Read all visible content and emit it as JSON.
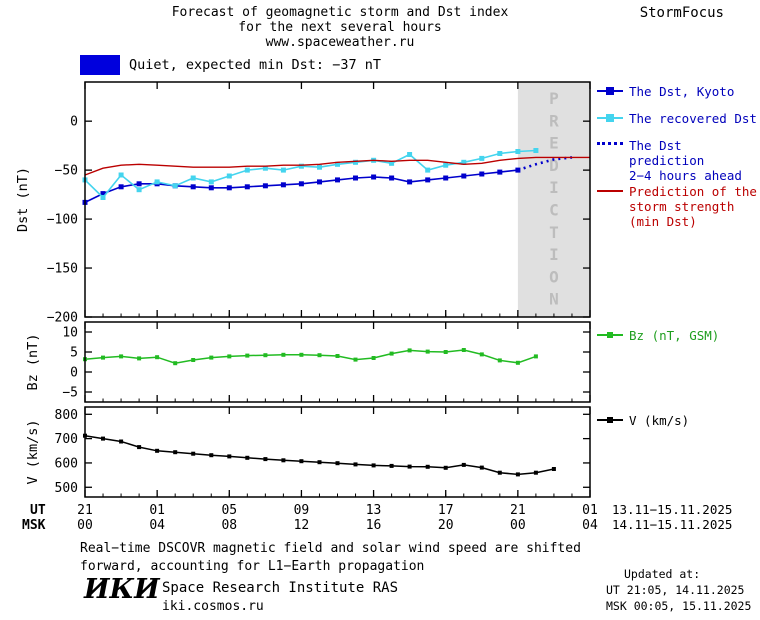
{
  "header": {
    "title_line1": "Forecast of geomagnetic storm and Dst index",
    "title_line2": "for the next several hours",
    "title_line3": "www.spaceweather.ru",
    "brand": "StormFocus"
  },
  "status": {
    "label": "Quiet, expected min Dst: −37 nT"
  },
  "colors": {
    "dst_blue": "#0000cc",
    "recovered_cyan": "#44d4ee",
    "prediction_red": "#bb0000",
    "bz_green": "#22bb22",
    "v_black": "#000000",
    "band_gray": "#e0e0e0",
    "status_swatch_blue": "#0000dd"
  },
  "legend": {
    "dst_kyoto": "The Dst, Kyoto",
    "recovered": "The recovered Dst",
    "prediction_l1": "The Dst prediction",
    "prediction_l2": "2−4 hours ahead",
    "storm_l1": "Prediction of the",
    "storm_l2": "storm strength",
    "storm_l3": "(min Dst)",
    "bz": "Bz (nT, GSM)",
    "v": "V (km/s)"
  },
  "axes": {
    "xlim": [
      0,
      28
    ],
    "x_ticks_hours": [
      0,
      4,
      8,
      12,
      16,
      20,
      24,
      28
    ],
    "ut_header": "UT",
    "msk_header": "MSK",
    "ut_tick_labels": [
      "21",
      "01",
      "05",
      "09",
      "13",
      "17",
      "21",
      "01"
    ],
    "msk_tick_labels": [
      "00",
      "04",
      "08",
      "12",
      "16",
      "20",
      "00",
      "04"
    ],
    "ut_date_range": "13.11−15.11.2025",
    "msk_date_range": "14.11−15.11.2025",
    "prediction_band_hours": [
      24,
      28
    ],
    "prediction_band_label": "PREDICTION"
  },
  "chart_data": [
    {
      "type": "line",
      "ylabel": "Dst (nT)",
      "ylim": [
        -200,
        40
      ],
      "yticks": [
        0,
        -50,
        -100,
        -150,
        -200
      ],
      "ytick_labels": [
        "0",
        "−50",
        "−100",
        "−150",
        "−200"
      ],
      "series": [
        {
          "id": "dst-kyoto",
          "name": "The Dst, Kyoto",
          "color": "#0000cc",
          "marker": 5,
          "width": 1.6,
          "x0": 0,
          "dx": 1,
          "y": [
            -83,
            -74,
            -67,
            -64,
            -64,
            -66,
            -67,
            -68,
            -68,
            -67,
            -66,
            -65,
            -64,
            -62,
            -60,
            -58,
            -57,
            -58,
            -62,
            -60,
            -58,
            -56,
            -54,
            -52,
            -50
          ]
        },
        {
          "id": "recovered-dst",
          "name": "The recovered Dst",
          "color": "#44d4ee",
          "marker": 5,
          "width": 1.6,
          "x0": 0,
          "dx": 1,
          "y": [
            -60,
            -78,
            -55,
            -70,
            -62,
            -66,
            -58,
            -62,
            -56,
            -50,
            -48,
            -50,
            -46,
            -47,
            -44,
            -42,
            -40,
            -43,
            -34,
            -50,
            -45,
            -42,
            -38,
            -33,
            -31,
            -30
          ]
        },
        {
          "id": "dst-prediction",
          "name": "The Dst prediction 2−4 hours ahead",
          "color": "#0000cc",
          "dash": "2 4",
          "width": 2.6,
          "x0": 24,
          "dx": 1,
          "y": [
            -50,
            -44,
            -39,
            -37
          ]
        },
        {
          "id": "storm-prediction",
          "name": "Prediction of the storm strength (min Dst)",
          "color": "#bb0000",
          "width": 1.4,
          "x0": 0,
          "dx": 1,
          "y": [
            -55,
            -48,
            -45,
            -44,
            -45,
            -46,
            -47,
            -47,
            -47,
            -46,
            -46,
            -45,
            -45,
            -44,
            -42,
            -41,
            -40,
            -41,
            -40,
            -40,
            -42,
            -44,
            -43,
            -40,
            -38,
            -37,
            -37,
            -37,
            -37
          ]
        }
      ]
    },
    {
      "type": "line",
      "ylabel": "Bz (nT)",
      "ylim": [
        -7.5,
        12.5
      ],
      "yticks": [
        10,
        5,
        0,
        -5
      ],
      "ytick_labels": [
        "10",
        "5",
        "0",
        "−5"
      ],
      "series": [
        {
          "id": "bz",
          "name": "Bz (nT, GSM)",
          "color": "#22bb22",
          "marker": 4,
          "width": 1.5,
          "x0": 0,
          "dx": 1,
          "y": [
            3.2,
            3.6,
            3.9,
            3.4,
            3.7,
            2.2,
            3.0,
            3.6,
            3.9,
            4.1,
            4.2,
            4.3,
            4.3,
            4.2,
            4.0,
            3.1,
            3.5,
            4.6,
            5.4,
            5.1,
            5.0,
            5.5,
            4.4,
            2.9,
            2.3,
            3.9
          ]
        }
      ]
    },
    {
      "type": "line",
      "ylabel": "V (km/s)",
      "ylim": [
        460,
        830
      ],
      "yticks": [
        800,
        700,
        600,
        500
      ],
      "ytick_labels": [
        "800",
        "700",
        "600",
        "500"
      ],
      "series": [
        {
          "id": "solar-wind-v",
          "name": "V (km/s)",
          "color": "#000000",
          "marker": 4,
          "width": 1.5,
          "x0": 0,
          "dx": 1,
          "y": [
            712,
            700,
            688,
            665,
            650,
            644,
            638,
            632,
            627,
            621,
            616,
            611,
            607,
            603,
            599,
            594,
            590,
            588,
            585,
            584,
            580,
            592,
            581,
            560,
            553,
            560,
            575
          ]
        }
      ]
    }
  ],
  "footer": {
    "note_line1": "Real−time DSCOVR magnetic field and solar wind speed are shifted",
    "note_line2": "forward, accounting for L1−Earth propagation",
    "logo": "ИКИ",
    "institute": "Space Research Institute RAS",
    "site": "iki.cosmos.ru",
    "updated_label": "Updated at:",
    "updated_ut": "UT  21:05, 14.11.2025",
    "updated_msk": "MSK 00:05, 15.11.2025"
  }
}
